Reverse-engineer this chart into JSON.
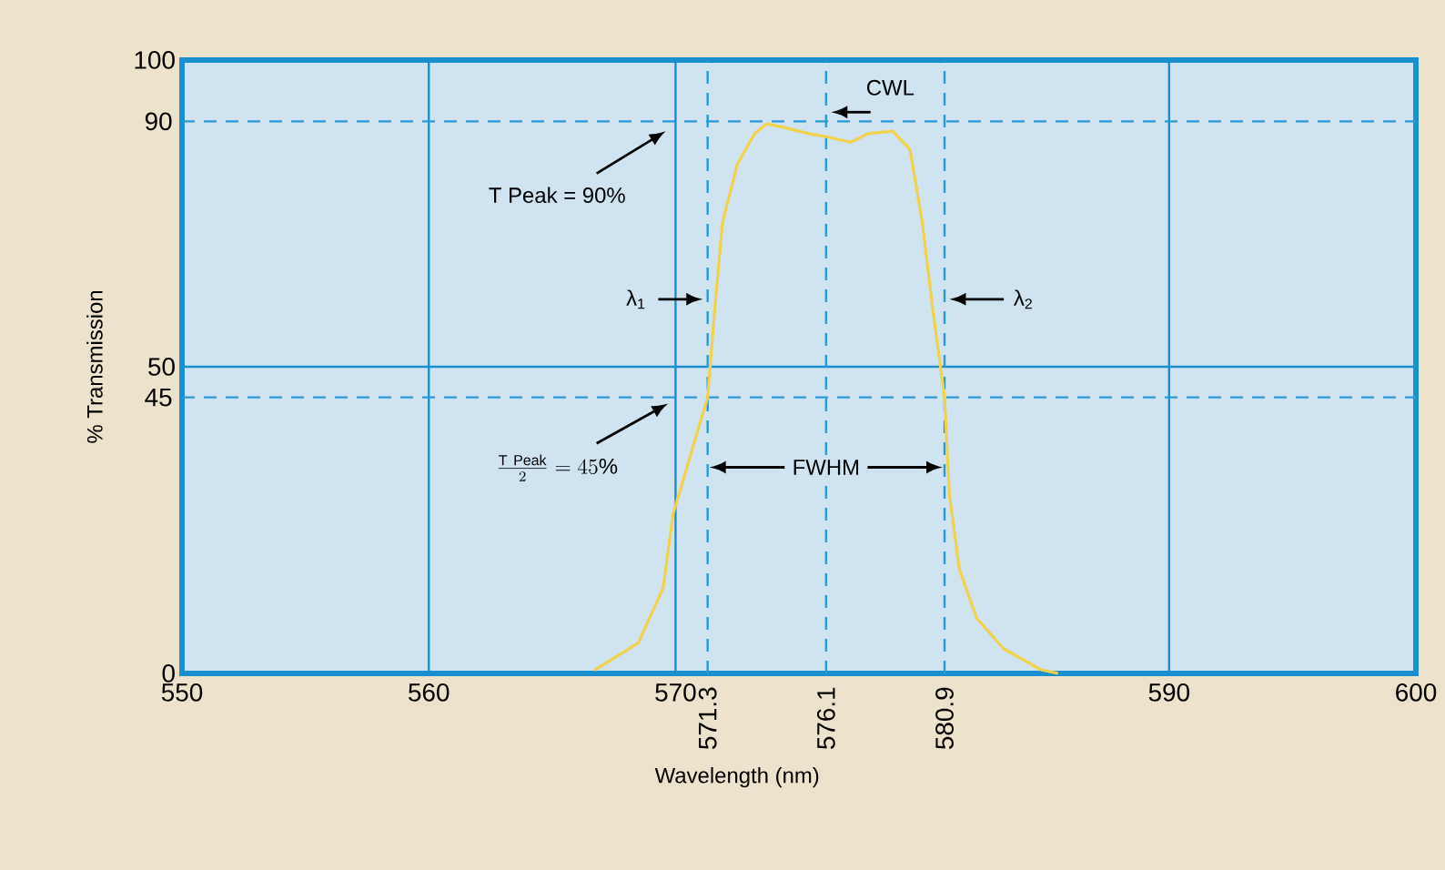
{
  "chart_data": {
    "type": "line",
    "xlabel": "Wavelength (nm)",
    "ylabel": "% Transmission",
    "series": [
      {
        "color": "#f2d24a",
        "x": [
          566.7,
          568.5,
          569.5,
          569.9,
          571.3,
          571.6,
          571.9,
          572.5,
          573.2,
          573.7,
          574.4,
          575.4,
          576.1,
          577.1,
          577.8,
          578.8,
          579.5,
          580.0,
          580.4,
          580.9,
          581.1,
          581.5,
          582.2,
          583.3,
          584.8,
          585.5
        ],
        "values": [
          0.5,
          5,
          14,
          26,
          45,
          60,
          73.5,
          83,
          88,
          89.6,
          89,
          88,
          87.5,
          86.6,
          88,
          88.4,
          85.4,
          73.5,
          60,
          45,
          29,
          17,
          9,
          4,
          0.6,
          0
        ]
      }
    ],
    "xlim": [
      550,
      600
    ],
    "ylim": [
      0,
      100
    ],
    "xticks": [
      550,
      560,
      570,
      590,
      600
    ],
    "yticks": [
      0,
      50,
      100
    ],
    "grid": true,
    "ref_lines": [
      {
        "axis": "x",
        "value": 571.3,
        "label": "571.3",
        "color": "#2a9ad6",
        "line_style": "dashed"
      },
      {
        "axis": "x",
        "value": 576.1,
        "label": "576.1",
        "color": "#2a9ad6",
        "line_style": "dashed"
      },
      {
        "axis": "x",
        "value": 580.9,
        "label": "580.9",
        "color": "#2a9ad6",
        "line_style": "dashed"
      },
      {
        "axis": "y",
        "value": 90,
        "label": "90",
        "color": "#2a9ad6",
        "line_style": "dashed"
      },
      {
        "axis": "y",
        "value": 45,
        "label": "45",
        "color": "#2a9ad6",
        "line_style": "dashed"
      }
    ],
    "annotations": [
      "T Peak = 90%",
      "\\frac{\\mathrm{T\\ Peak}}{2} = 45\\%",
      {
        "text": "λ$_{1}$",
        "x": 571.3,
        "y": 61
      },
      "CWL",
      "λ$_{2}$",
      {
        "text": "FWHM",
        "x": 576.1,
        "y": 33.6
      }
    ]
  }
}
